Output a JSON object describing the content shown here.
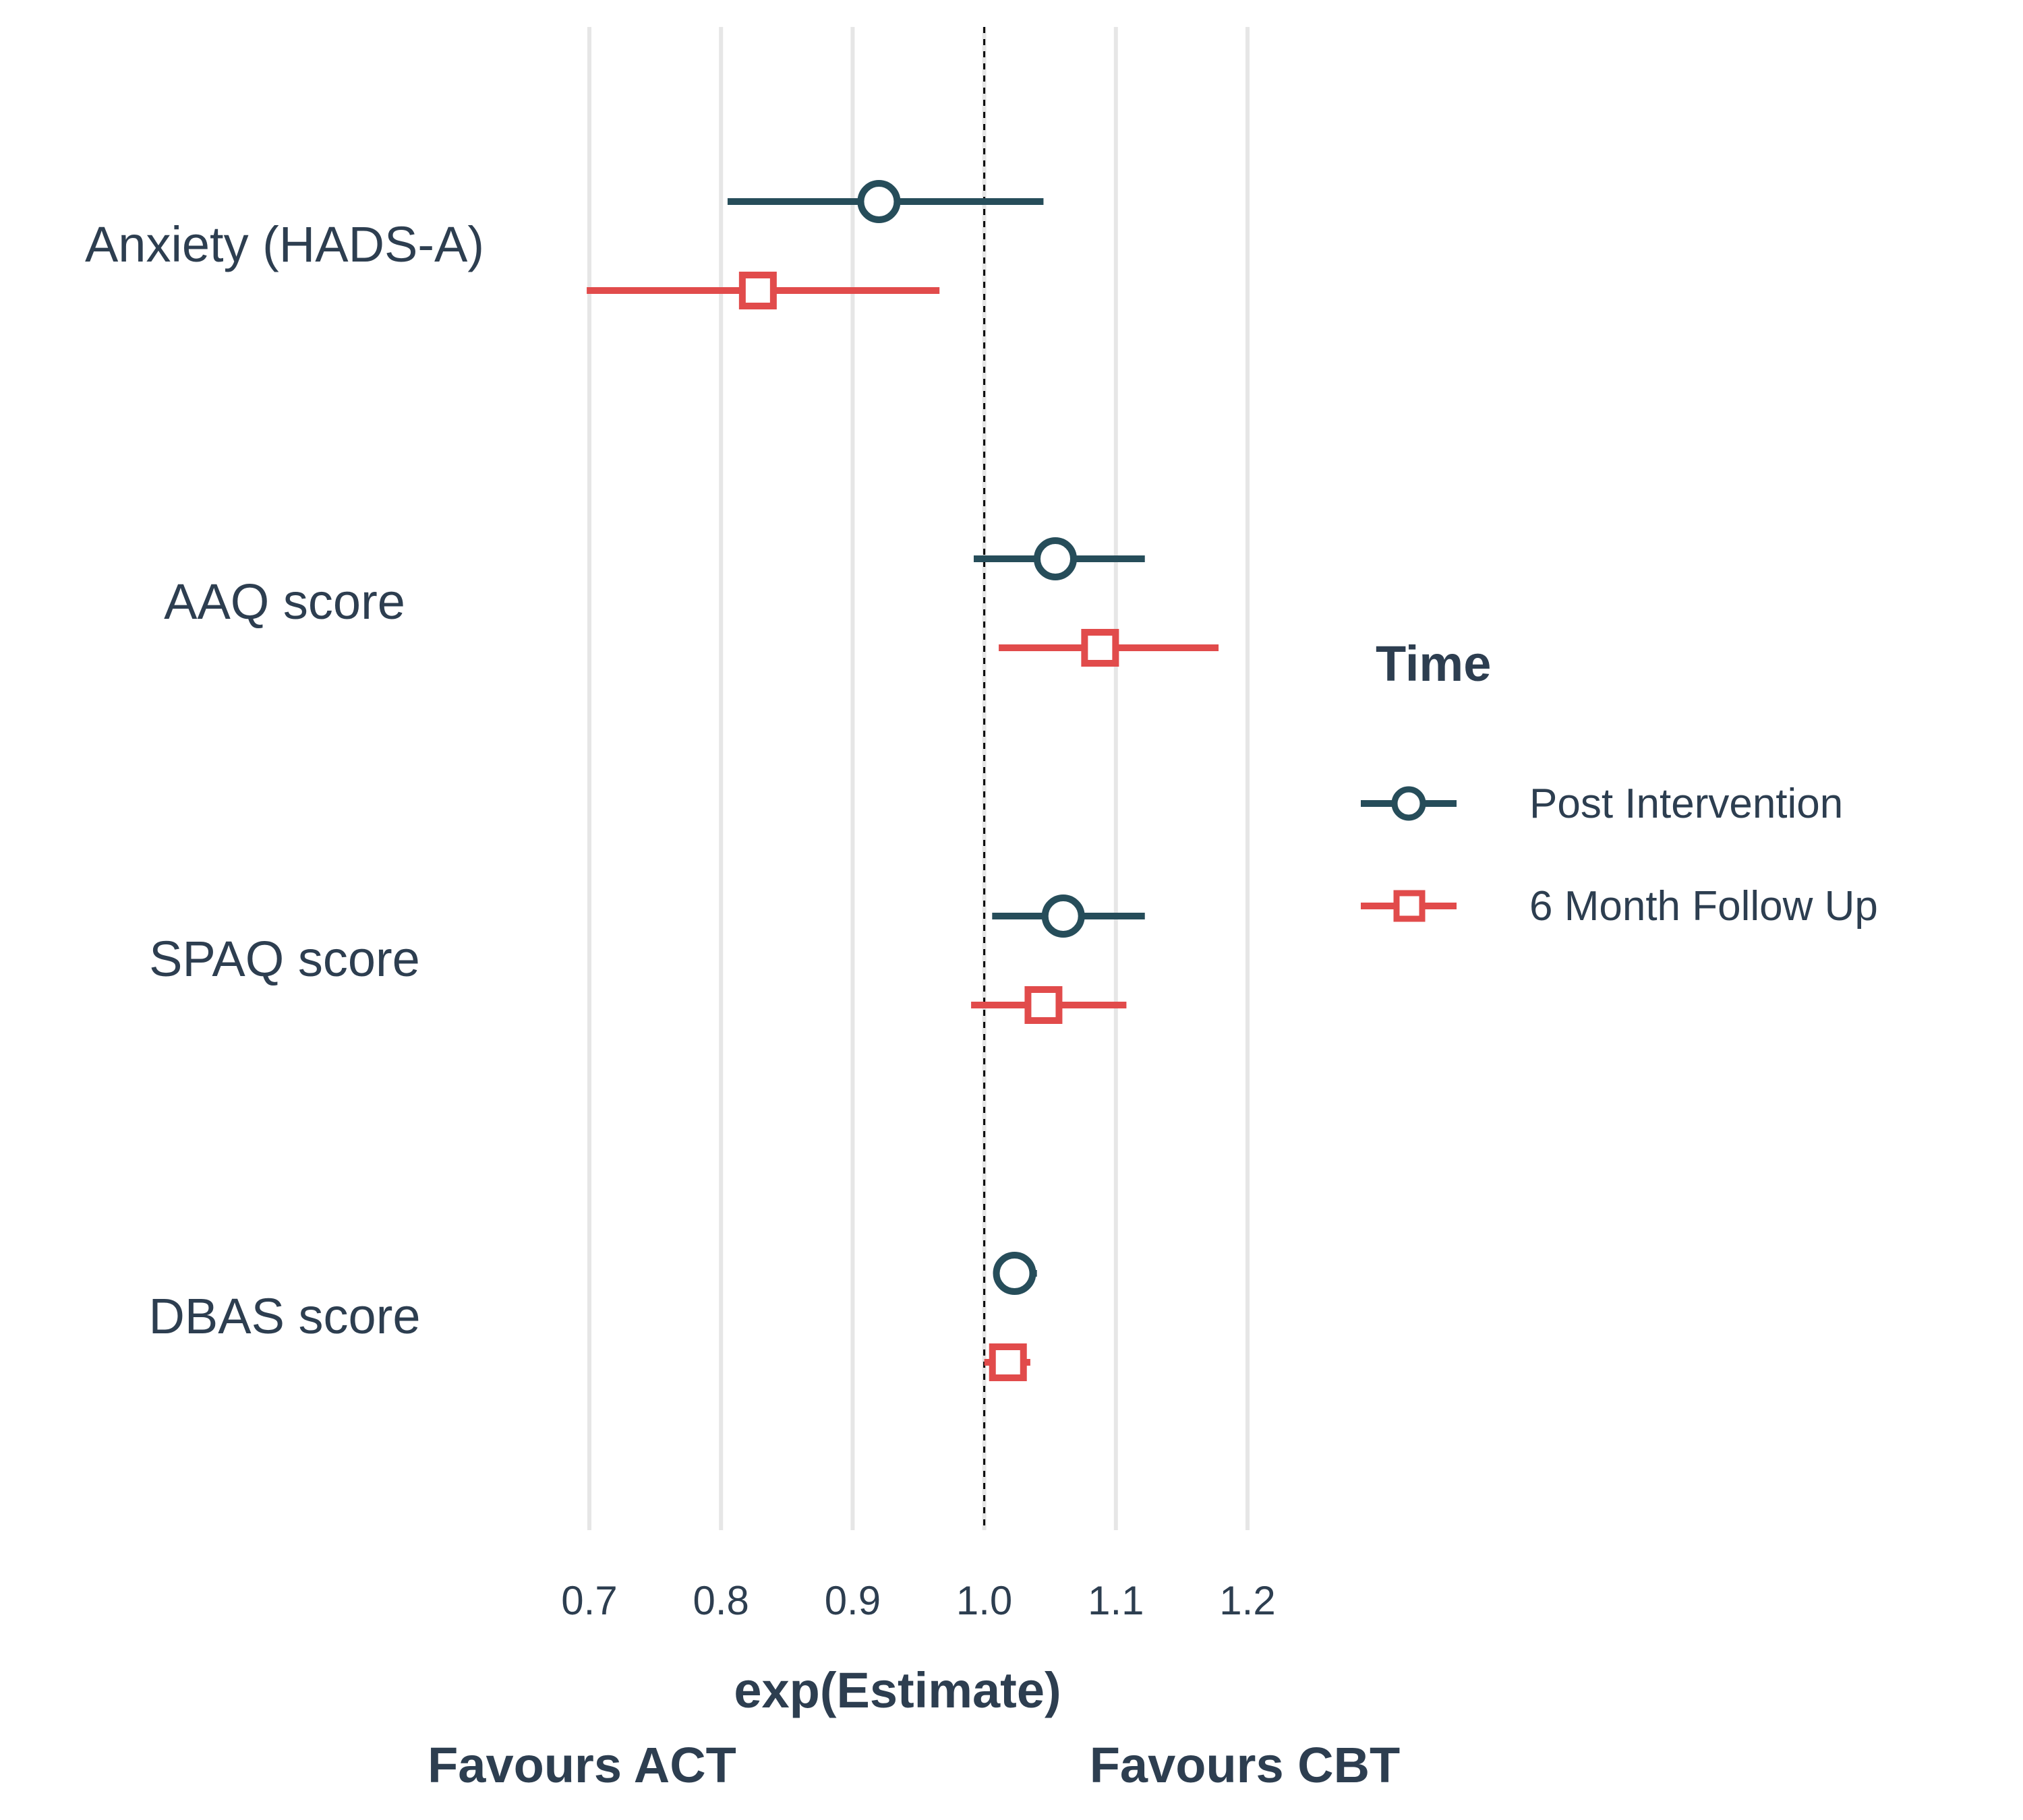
{
  "chart_data": {
    "type": "forest",
    "xlabel": "exp(Estimate)",
    "direction_labels": {
      "left": "Favours ACT",
      "right": "Favours CBT"
    },
    "xlim": [
      0.7,
      1.2
    ],
    "x_ticks": [
      "0.7",
      "0.8",
      "0.9",
      "1.0",
      "1.1",
      "1.2"
    ],
    "reference_line": 1.0,
    "grid": "vertical",
    "categories": [
      "Anxiety (HADS-A)",
      "AAQ score",
      "SPAQ score",
      "DBAS score"
    ],
    "legend": {
      "title": "Time",
      "position": "right"
    },
    "series": [
      {
        "name": "Post Intervention",
        "color": "#264d5a",
        "marker": "circle",
        "points": [
          {
            "estimate": 0.92,
            "lower": 0.805,
            "upper": 1.045
          },
          {
            "estimate": 1.054,
            "lower": 0.992,
            "upper": 1.122
          },
          {
            "estimate": 1.06,
            "lower": 1.006,
            "upper": 1.122
          },
          {
            "estimate": 1.023,
            "lower": 1.01,
            "upper": 1.04
          }
        ]
      },
      {
        "name": "6 Month Follow Up",
        "color": "#e14b4b",
        "marker": "square",
        "points": [
          {
            "estimate": 0.828,
            "lower": 0.698,
            "upper": 0.966
          },
          {
            "estimate": 1.088,
            "lower": 1.011,
            "upper": 1.178
          },
          {
            "estimate": 1.045,
            "lower": 0.99,
            "upper": 1.108
          },
          {
            "estimate": 1.018,
            "lower": 1.0,
            "upper": 1.035
          }
        ]
      }
    ]
  }
}
